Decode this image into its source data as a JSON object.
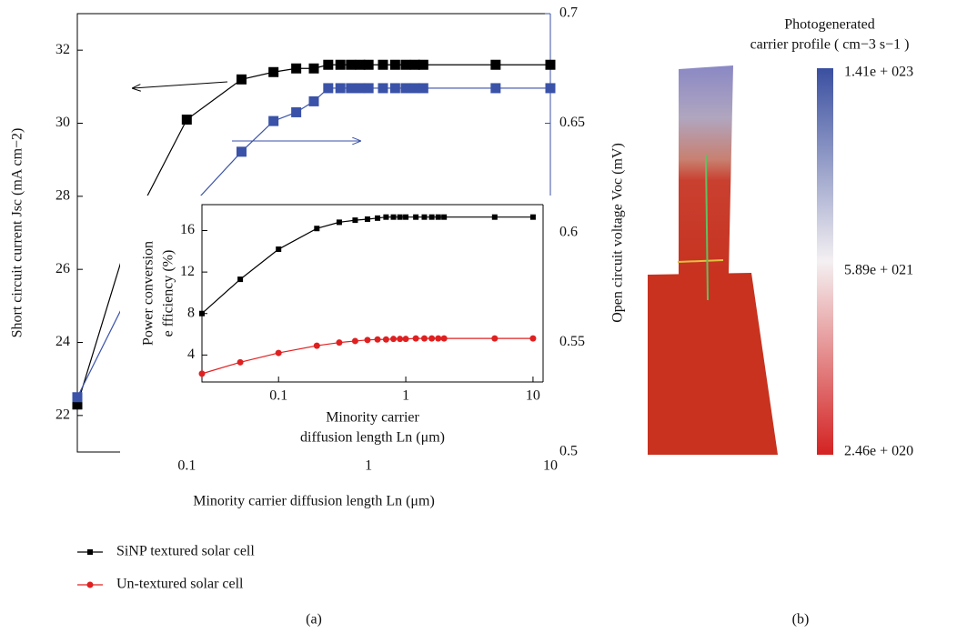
{
  "chart_data": [
    {
      "type": "line",
      "xscale": "log",
      "xlabel": "Minority carrier diffusion length Ln (μm)",
      "ylabel": "Short circuit current Jsc (mA cm−2)",
      "y2label": "Open circuit voltage Voc (mV)",
      "xlim": [
        0.025,
        10
      ],
      "xticks": [
        0.1,
        1,
        10
      ],
      "ylim": [
        21,
        33
      ],
      "yticks": [
        22,
        24,
        26,
        28,
        30,
        32
      ],
      "y2lim": [
        0.5,
        0.7
      ],
      "y2ticks": [
        0.5,
        0.55,
        0.6,
        0.65,
        0.7
      ],
      "y2color": "#3a52a8",
      "series": [
        {
          "color": "#000000",
          "marker": "square",
          "x": [
            0.025,
            0.05,
            0.1,
            0.2,
            0.3,
            0.4,
            0.5,
            0.6,
            0.7,
            0.8,
            0.9,
            1,
            1.2,
            1.4,
            1.6,
            1.8,
            2,
            5,
            10
          ],
          "values": [
            22.3,
            27.2,
            30.1,
            31.2,
            31.4,
            31.5,
            31.5,
            31.6,
            31.6,
            31.6,
            31.6,
            31.6,
            31.6,
            31.6,
            31.6,
            31.6,
            31.6,
            31.6,
            31.6
          ]
        },
        {
          "color": "#3a52a8",
          "marker": "square",
          "axis": "y2",
          "x": [
            0.025,
            0.05,
            0.1,
            0.2,
            0.3,
            0.4,
            0.5,
            0.6,
            0.7,
            0.8,
            0.9,
            1,
            1.2,
            1.4,
            1.6,
            1.8,
            2,
            5,
            10
          ],
          "values": [
            0.525,
            0.575,
            0.61,
            0.637,
            0.651,
            0.655,
            0.66,
            0.666,
            0.666,
            0.666,
            0.666,
            0.666,
            0.666,
            0.666,
            0.666,
            0.666,
            0.666,
            0.666,
            0.666
          ]
        }
      ]
    },
    {
      "type": "line",
      "xscale": "log",
      "xlabel": [
        "Minority carrier",
        "diffusion length Ln (μm)"
      ],
      "ylabel": [
        "Power conversion",
        "e fficiency (%)"
      ],
      "xlim": [
        0.025,
        12
      ],
      "xticks": [
        0.1,
        1,
        10
      ],
      "ylim": [
        1.4,
        18.5
      ],
      "yticks": [
        4,
        8,
        12,
        16
      ],
      "series": [
        {
          "name": "SiNP textured solar cell",
          "color": "#000000",
          "marker": "square",
          "x": [
            0.025,
            0.05,
            0.1,
            0.2,
            0.3,
            0.4,
            0.5,
            0.6,
            0.7,
            0.8,
            0.9,
            1,
            1.2,
            1.4,
            1.6,
            1.8,
            2,
            5,
            10
          ],
          "values": [
            8,
            11.3,
            14.2,
            16.2,
            16.8,
            17,
            17.1,
            17.2,
            17.3,
            17.3,
            17.3,
            17.3,
            17.3,
            17.3,
            17.3,
            17.3,
            17.3,
            17.3,
            17.3
          ]
        },
        {
          "name": "Un-textured solar cell",
          "color": "#e02020",
          "marker": "circle",
          "x": [
            0.025,
            0.05,
            0.1,
            0.2,
            0.3,
            0.4,
            0.5,
            0.6,
            0.7,
            0.8,
            0.9,
            1,
            1.2,
            1.4,
            1.6,
            1.8,
            2,
            5,
            10
          ],
          "values": [
            2.2,
            3.3,
            4.2,
            4.9,
            5.2,
            5.35,
            5.45,
            5.5,
            5.5,
            5.55,
            5.55,
            5.55,
            5.6,
            5.6,
            5.6,
            5.6,
            5.6,
            5.6,
            5.6
          ]
        }
      ]
    }
  ],
  "panel_labels": [
    "(a)",
    "(b)"
  ],
  "panel_b": {
    "title": [
      "Photogenerated",
      "carrier profile ( cm−3 s−1 )"
    ],
    "colorbar_labels": [
      "1.41e + 023",
      "5.89e + 021",
      "2.46e + 020"
    ]
  }
}
